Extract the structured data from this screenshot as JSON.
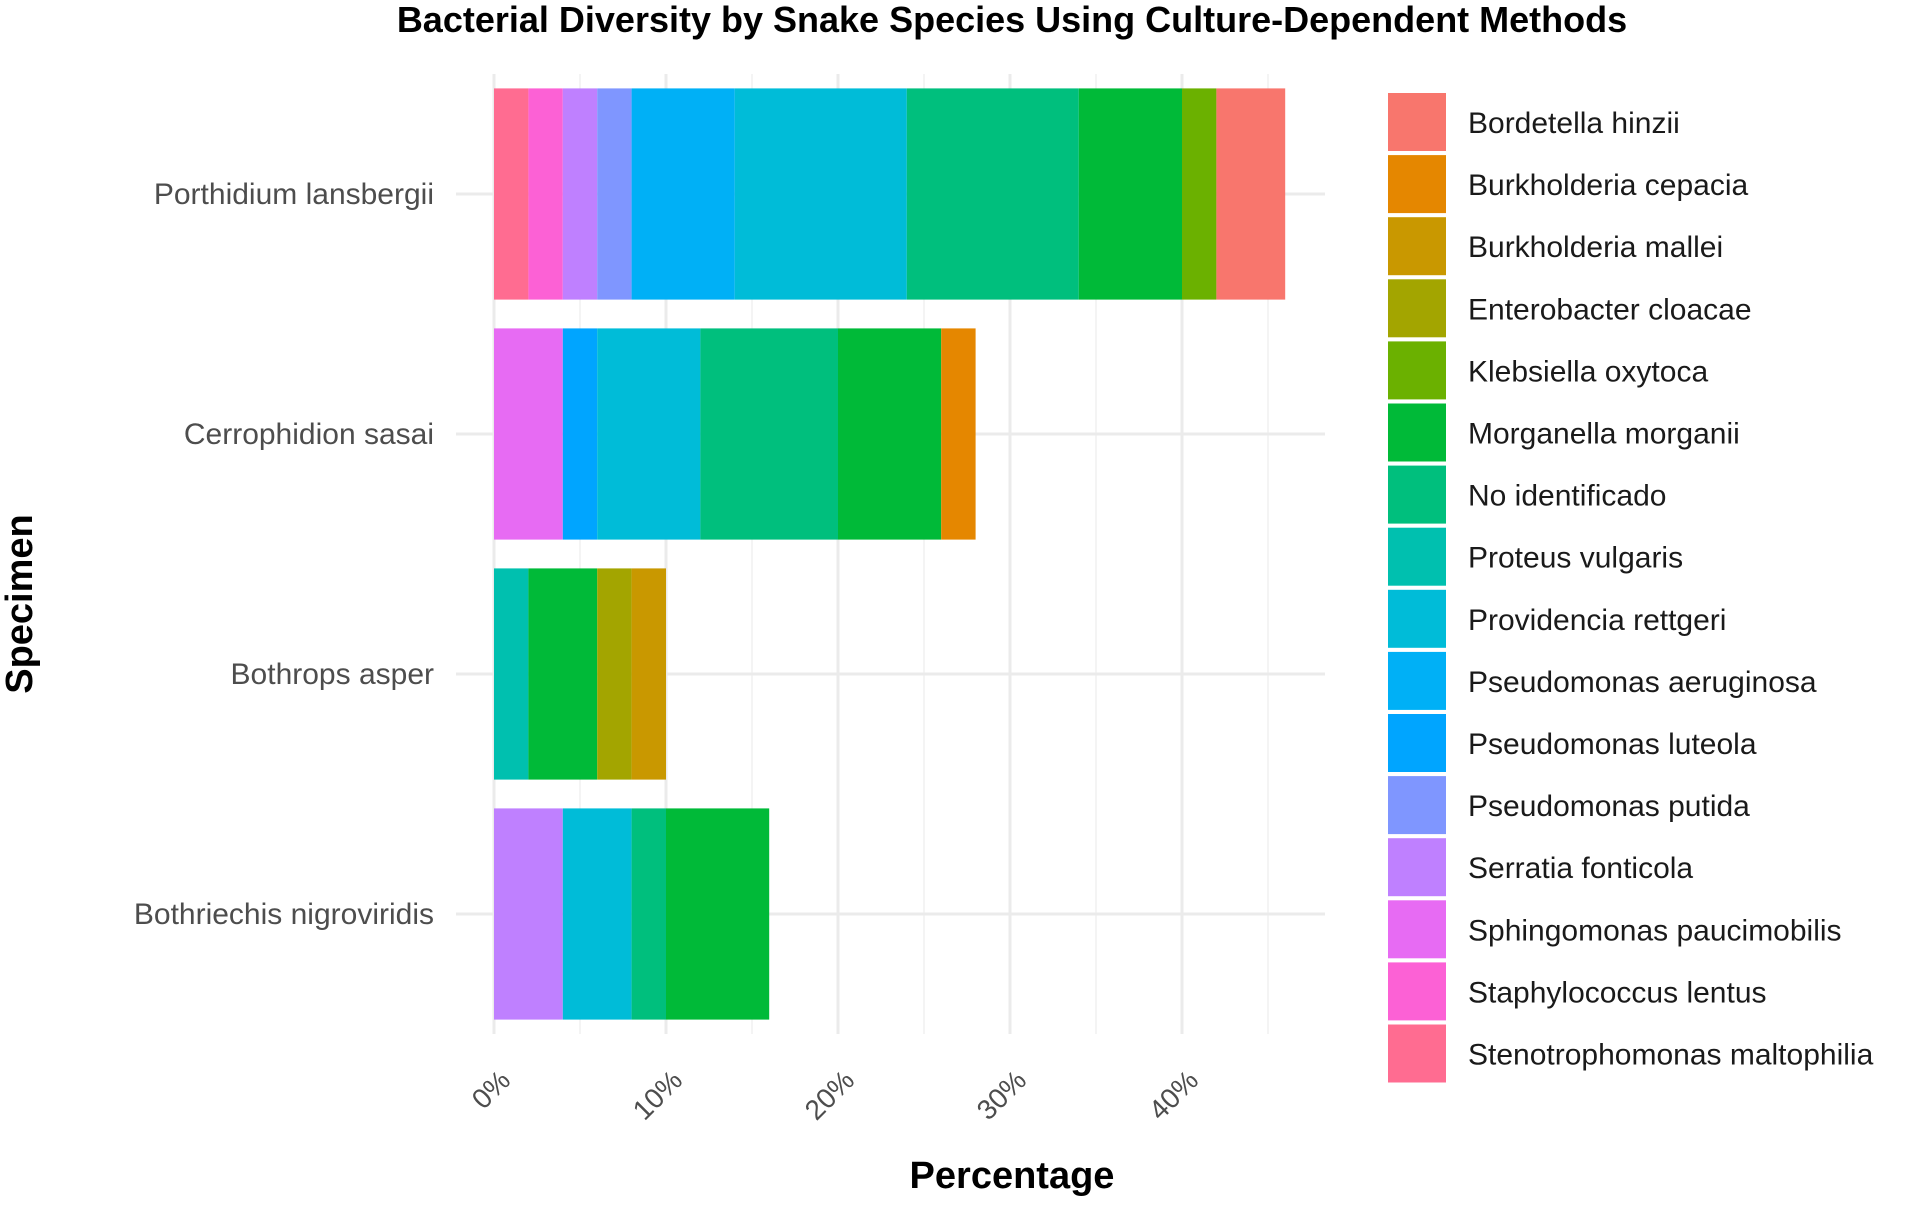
{
  "chart_data": {
    "type": "bar",
    "orientation": "horizontal",
    "stacked": true,
    "title": "Bacterial Diversity by Snake Species Using Culture-Dependent Methods",
    "xlabel": "Percentage",
    "ylabel": "Specimen",
    "xlim": [
      0,
      48
    ],
    "xticks": [
      0,
      10,
      20,
      30,
      40
    ],
    "xtick_labels": [
      "0%",
      "10%",
      "20%",
      "30%",
      "40%"
    ],
    "grid": true,
    "legend_position": "right",
    "categories": [
      "Porthidium lansbergii",
      "Cerrophidion sasai",
      "Bothrops asper",
      "Bothriechis nigroviridis"
    ],
    "stack_order": [
      "Stenotrophomonas maltophilia",
      "Staphylococcus lentus",
      "Sphingomonas paucimobilis",
      "Serratia fonticola",
      "Pseudomonas putida",
      "Pseudomonas luteola",
      "Pseudomonas aeruginosa",
      "Providencia rettgeri",
      "Proteus vulgaris",
      "No identificado",
      "Morganella morganii",
      "Klebsiella oxytoca",
      "Enterobacter cloacae",
      "Burkholderia mallei",
      "Burkholderia cepacia",
      "Bordetella hinzii"
    ],
    "series": [
      {
        "name": "Bordetella hinzii",
        "color": "#F8766D",
        "values": [
          4,
          0,
          0,
          0
        ]
      },
      {
        "name": "Burkholderia cepacia",
        "color": "#E58700",
        "values": [
          0,
          2,
          0,
          0
        ]
      },
      {
        "name": "Burkholderia mallei",
        "color": "#C99800",
        "values": [
          0,
          0,
          2,
          0
        ]
      },
      {
        "name": "Enterobacter cloacae",
        "color": "#A3A500",
        "values": [
          0,
          0,
          2,
          0
        ]
      },
      {
        "name": "Klebsiella oxytoca",
        "color": "#6BB100",
        "values": [
          2,
          0,
          0,
          0
        ]
      },
      {
        "name": "Morganella morganii",
        "color": "#00BA38",
        "values": [
          6,
          6,
          4,
          6
        ]
      },
      {
        "name": "No identificado",
        "color": "#00BF7D",
        "values": [
          10,
          8,
          0,
          2
        ]
      },
      {
        "name": "Proteus vulgaris",
        "color": "#00C0AF",
        "values": [
          0,
          0,
          2,
          0
        ]
      },
      {
        "name": "Providencia rettgeri",
        "color": "#00BCD8",
        "values": [
          10,
          6,
          0,
          4
        ]
      },
      {
        "name": "Pseudomonas aeruginosa",
        "color": "#00B0F6",
        "values": [
          6,
          0,
          0,
          0
        ]
      },
      {
        "name": "Pseudomonas luteola",
        "color": "#00A5FF",
        "values": [
          0,
          2,
          0,
          0
        ]
      },
      {
        "name": "Pseudomonas putida",
        "color": "#7F96FF",
        "values": [
          2,
          0,
          0,
          0
        ]
      },
      {
        "name": "Serratia fonticola",
        "color": "#BF80FF",
        "values": [
          2,
          0,
          0,
          4
        ]
      },
      {
        "name": "Sphingomonas paucimobilis",
        "color": "#E76BF3",
        "values": [
          0,
          4,
          0,
          0
        ]
      },
      {
        "name": "Staphylococcus lentus",
        "color": "#FC61D5",
        "values": [
          2,
          0,
          0,
          0
        ]
      },
      {
        "name": "Stenotrophomonas maltophilia",
        "color": "#FF6C91",
        "values": [
          2,
          0,
          0,
          0
        ]
      }
    ]
  }
}
